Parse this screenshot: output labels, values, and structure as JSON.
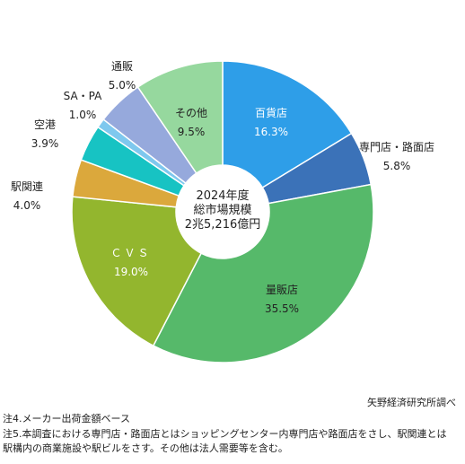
{
  "chart_data": {
    "type": "pie",
    "center_label": [
      "2024年度",
      "総市場規模",
      "2兆5,216億円"
    ],
    "slices": [
      {
        "name": "百貨店",
        "value": 16.3,
        "label": "16.3%",
        "color": "#2e9ee8"
      },
      {
        "name": "専門店・路面店",
        "value": 5.8,
        "label": "5.8%",
        "color": "#3b72b8"
      },
      {
        "name": "量販店",
        "value": 35.5,
        "label": "35.5%",
        "color": "#56b96a"
      },
      {
        "name": "ＣＶＳ",
        "value": 19.0,
        "label": "19.0%",
        "color": "#93b62e"
      },
      {
        "name": "駅関連",
        "value": 4.0,
        "label": "4.0%",
        "color": "#dba83c"
      },
      {
        "name": "空港",
        "value": 3.9,
        "label": "3.9%",
        "color": "#17c3c3"
      },
      {
        "name": "SA・PA",
        "value": 1.0,
        "label": "1.0%",
        "color": "#7ec8ee"
      },
      {
        "name": "通販",
        "value": 5.0,
        "label": "5.0%",
        "color": "#96a9dc"
      },
      {
        "name": "その他",
        "value": 9.5,
        "label": "9.5%",
        "color": "#96d89e"
      }
    ]
  },
  "source": "矢野経済研究所調べ",
  "notes": [
    "注4.メーカー出荷金額ベース",
    "注5.本調査における専門店・路面店とはショッピングセンター内専門店や路面店をさし、駅関連とは",
    "駅構内の商業施設や駅ビルをさす。その他は法人需要等を含む。"
  ]
}
